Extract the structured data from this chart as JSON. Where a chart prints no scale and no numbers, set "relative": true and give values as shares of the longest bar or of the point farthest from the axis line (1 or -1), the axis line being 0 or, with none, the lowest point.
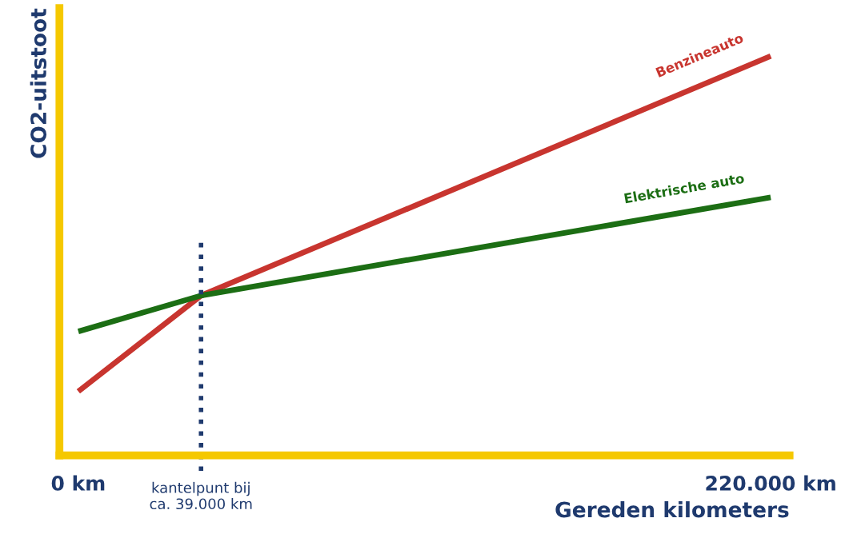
{
  "chart_data": {
    "type": "line",
    "relative": true,
    "ylabel": "CO2-uitstoot",
    "xlabel": "Gereden kilometers",
    "x": [
      0,
      39000,
      220000
    ],
    "series": [
      {
        "name": "Benzineauto",
        "color": "#c8352f",
        "values": [
          0.16,
          0.4,
          1.0
        ]
      },
      {
        "name": "Elektrische auto",
        "color": "#1c6e14",
        "values": [
          0.31,
          0.4,
          0.646
        ]
      }
    ],
    "xlim": [
      -6000,
      226000
    ],
    "xticks": [
      {
        "value": 0,
        "label": "0 km"
      },
      {
        "value": 220000,
        "label": "220.000 km"
      }
    ],
    "ref_lines": [
      {
        "axis": "x",
        "value": 39000,
        "label": "kantelpunt bij\nca. 39.000 km",
        "color": "#1f3a6e",
        "line_style": "dotted"
      }
    ],
    "grid": false,
    "legend": false,
    "marker": "none",
    "line_style": "solid"
  }
}
